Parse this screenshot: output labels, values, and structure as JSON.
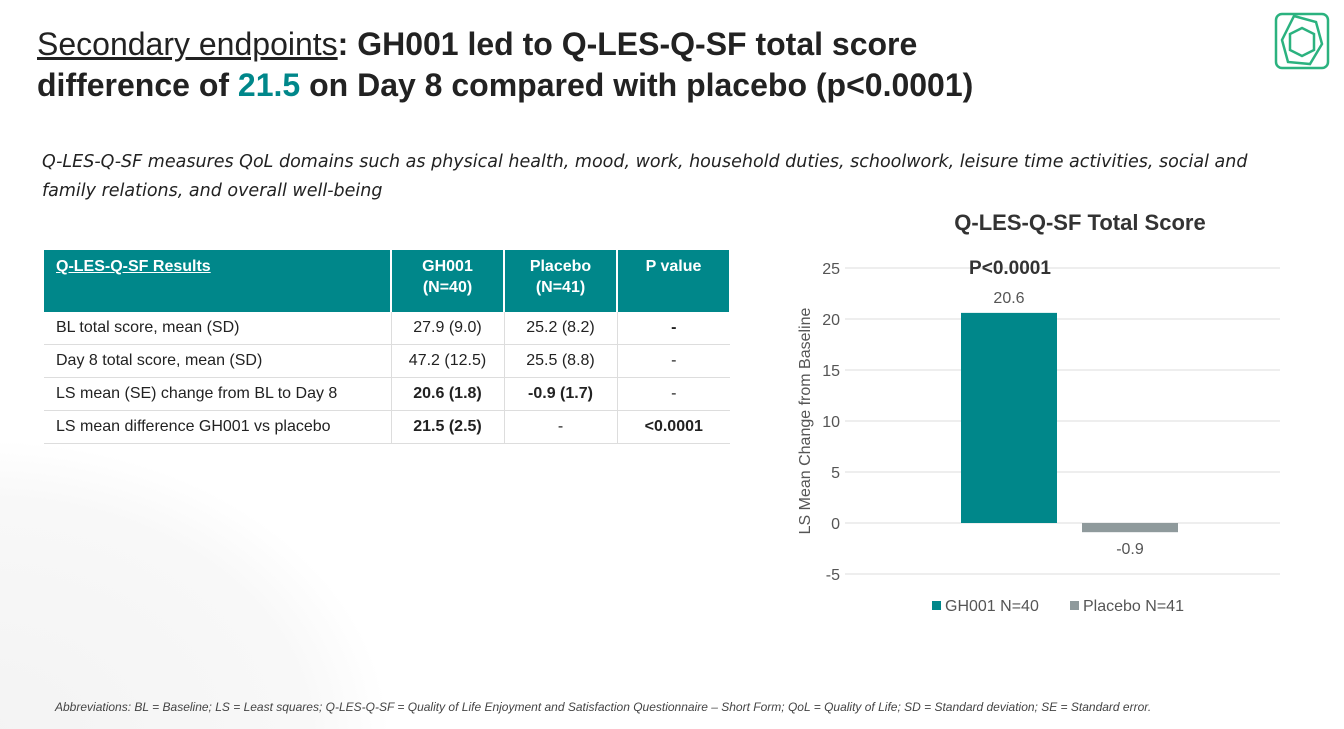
{
  "title": {
    "part1": "Secondary endpoints",
    "part2": ": GH001 led to Q-LES-Q-SF total score",
    "part3": "difference of ",
    "highlight": "21.5",
    "part4": " on Day 8 compared with placebo (p<0.0001)"
  },
  "subtitle": "Q-LES-Q-SF measures QoL domains such as physical health, mood, work, household duties, schoolwork, leisure time activities, social and family relations, and overall well-being",
  "table": {
    "headers": [
      "Q-LES-Q-SF Results",
      "GH001 (N=40)",
      "Placebo (N=41)",
      "P value"
    ],
    "rows": [
      [
        "BL total score, mean (SD)",
        "27.9 (9.0)",
        "25.2 (8.2)",
        "-"
      ],
      [
        "Day 8 total score, mean (SD)",
        "47.2 (12.5)",
        "25.5 (8.8)",
        "-"
      ],
      [
        "LS mean (SE) change from BL to Day 8",
        "20.6 (1.8)",
        "-0.9 (1.7)",
        "-"
      ],
      [
        "LS mean difference GH001 vs placebo",
        "21.5 (2.5)",
        "-",
        "<0.0001"
      ]
    ]
  },
  "chart_data": {
    "type": "bar",
    "title": "Q-LES-Q-SF Total Score",
    "annotation": "P<0.0001",
    "ylabel": "LS Mean Change from Baseline",
    "xlabel": "",
    "ylim": [
      -5,
      25
    ],
    "yticks": [
      25,
      20,
      15,
      10,
      5,
      0,
      -5
    ],
    "grid": true,
    "legend": "bottom",
    "series": [
      {
        "name": "GH001 N=40",
        "values": [
          20.6
        ],
        "color": "#00878a"
      },
      {
        "name": "Placebo N=41",
        "values": [
          -0.9
        ],
        "color": "#8f9a9c"
      }
    ]
  },
  "footnote": "Abbreviations: BL = Baseline; LS = Least squares; Q-LES-Q-SF = Quality of Life Enjoyment and Satisfaction Questionnaire – Short Form; QoL = Quality of Life; SD = Standard deviation; SE = Standard error.",
  "colors": {
    "accent": "#00878a",
    "logo": "#2bb27f"
  }
}
